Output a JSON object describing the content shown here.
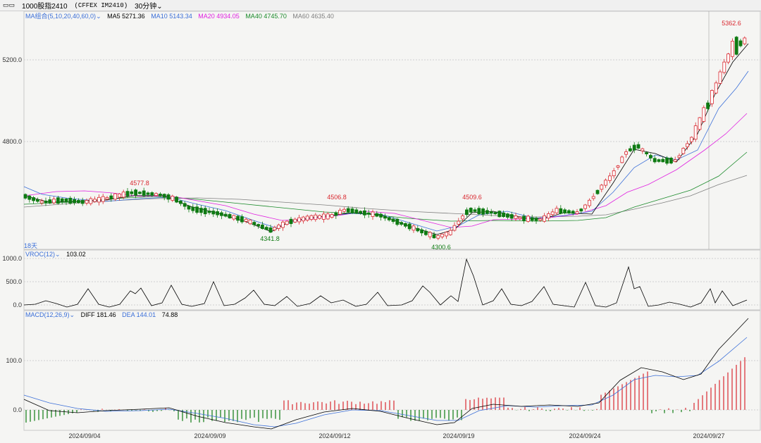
{
  "toolbar": {
    "icon": "chart-mode-icon",
    "symbol": "1000股指2410",
    "contract": "(CFFEX IM2410)",
    "period": "30分钟"
  },
  "price_panel": {
    "indicator_label": "MA组合(5,10,20,40,60,0)",
    "ma5": "MA5 5271.36",
    "ma10": "MA10 5143.34",
    "ma20": "MA20 4934.05",
    "ma40": "MA40 4745.70",
    "ma60": "MA60 4635.40",
    "colors": {
      "ma5": "#000000",
      "ma10": "#3b6fd8",
      "ma20": "#e020e0",
      "ma40": "#1a8a2a",
      "ma60": "#808080",
      "up": "#d9282f",
      "down": "#0e7a12"
    },
    "y_ticks": [
      "5200.0",
      "4800.0"
    ],
    "annotations": {
      "high_last": "5362.6",
      "h1": "4577.8",
      "h2": "4506.8",
      "h3": "4509.6",
      "l1": "4341.8",
      "l2": "4300.6"
    },
    "days_label": "18天"
  },
  "vroc_panel": {
    "label": "VROC(12)",
    "value": "103.02",
    "y_ticks": [
      "1000.0",
      "500.0",
      "0.0"
    ]
  },
  "macd_panel": {
    "label": "MACD(12,26,9)",
    "diff": "DIFF 181.46",
    "dea": "DEA 144.01",
    "macd": "74.88",
    "y_ticks": [
      "100.0",
      "0.0"
    ]
  },
  "x_axis": {
    "dates": [
      "2024/09/04",
      "2024/09/09",
      "2024/09/12",
      "2024/09/19",
      "2024/09/24",
      "2024/09/27"
    ]
  }
}
